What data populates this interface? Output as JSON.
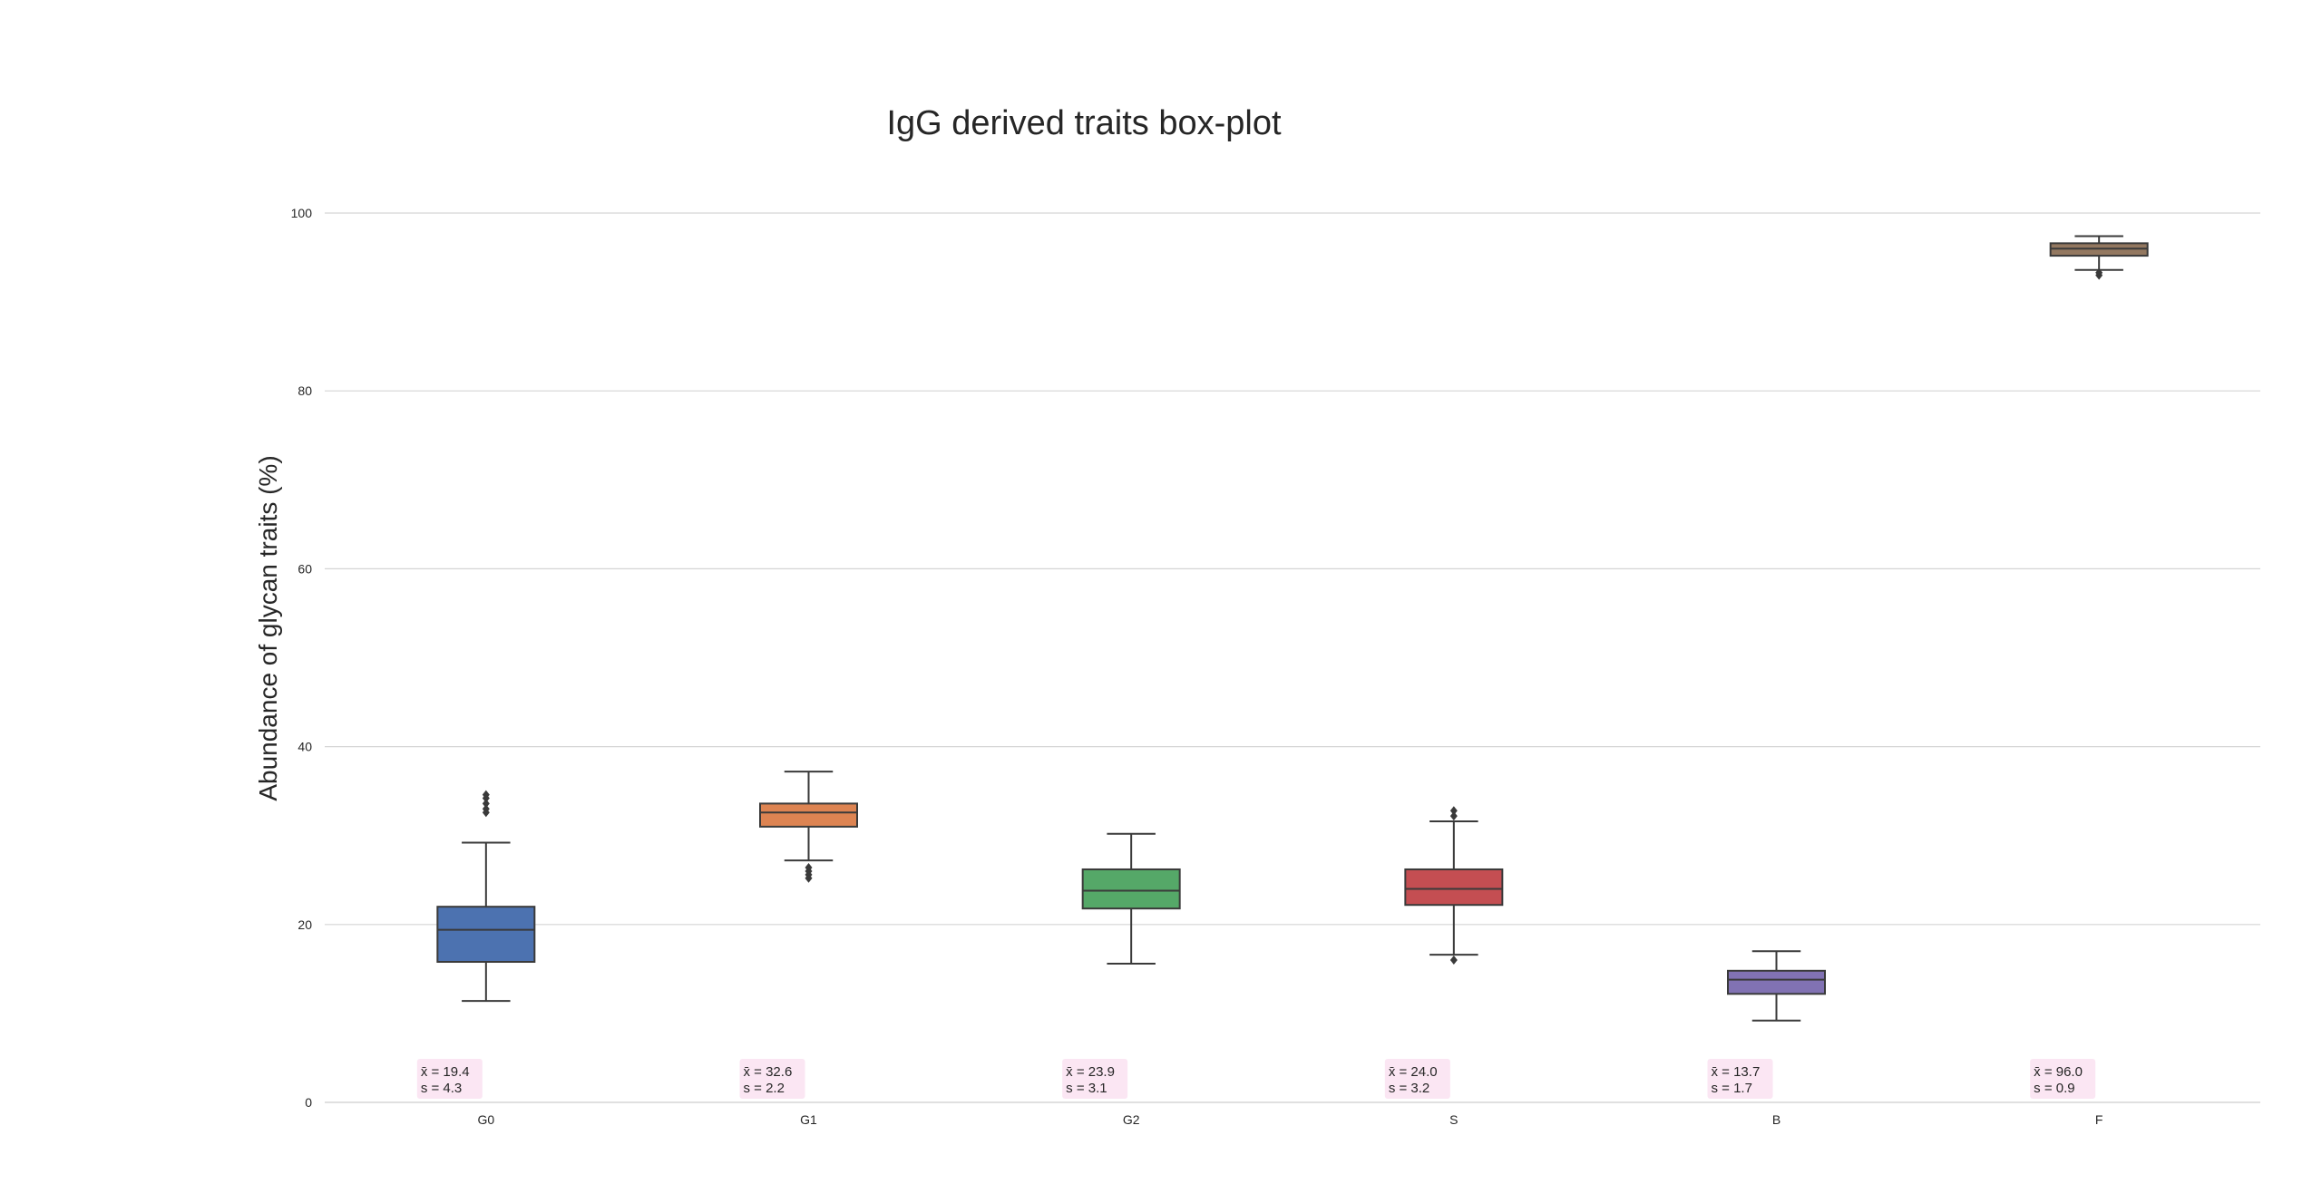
{
  "chart_data": {
    "type": "box",
    "title": "IgG derived traits box-plot",
    "xlabel": "",
    "ylabel": "Abundance of glycan traits (%)",
    "ylim": [
      0,
      105
    ],
    "yticks": [
      0,
      20,
      40,
      60,
      80,
      100
    ],
    "grid": "horizontal",
    "categories": [
      "G0",
      "G1",
      "G2",
      "S",
      "B",
      "F"
    ],
    "boxes": [
      {
        "name": "G0",
        "color": "#4c72b0",
        "whisker_low": 11.4,
        "q1": 15.8,
        "median": 19.4,
        "q3": 22.0,
        "whisker_high": 29.2,
        "outliers": [
          32.6,
          33.0,
          33.6,
          34.2,
          34.6
        ]
      },
      {
        "name": "G1",
        "color": "#dd8452",
        "whisker_low": 27.2,
        "q1": 31.0,
        "median": 32.6,
        "q3": 33.6,
        "whisker_high": 37.2,
        "outliers": [
          25.2,
          25.6,
          26.0,
          26.4
        ]
      },
      {
        "name": "G2",
        "color": "#55a868",
        "whisker_low": 15.6,
        "q1": 21.8,
        "median": 23.8,
        "q3": 26.2,
        "whisker_high": 30.2,
        "outliers": []
      },
      {
        "name": "S",
        "color": "#c44e52",
        "whisker_low": 16.6,
        "q1": 22.2,
        "median": 24.0,
        "q3": 26.2,
        "whisker_high": 31.6,
        "outliers": [
          16.0,
          32.2,
          32.8
        ]
      },
      {
        "name": "B",
        "color": "#8172b3",
        "whisker_low": 9.2,
        "q1": 12.2,
        "median": 13.8,
        "q3": 14.8,
        "whisker_high": 17.0,
        "outliers": []
      },
      {
        "name": "F",
        "color": "#937860",
        "whisker_low": 93.6,
        "q1": 95.2,
        "median": 96.0,
        "q3": 96.6,
        "whisker_high": 97.4,
        "outliers": [
          93.0,
          93.3
        ]
      }
    ],
    "annotations": [
      {
        "category": "G0",
        "mean_label": "x̄ = 19.4",
        "sd_label": "s = 4.3"
      },
      {
        "category": "G1",
        "mean_label": "x̄ = 32.6",
        "sd_label": "s = 2.2"
      },
      {
        "category": "G2",
        "mean_label": "x̄ = 23.9",
        "sd_label": "s = 3.1"
      },
      {
        "category": "S",
        "mean_label": "x̄ = 24.0",
        "sd_label": "s = 3.2"
      },
      {
        "category": "B",
        "mean_label": "x̄ = 13.7",
        "sd_label": "s = 1.7"
      },
      {
        "category": "F",
        "mean_label": "x̄ = 96.0",
        "sd_label": "s = 0.9"
      }
    ],
    "colors": {
      "grid": "#d5d5d5",
      "line": "#3a3a3a",
      "annotation_bg": "#fbe6f3"
    }
  }
}
